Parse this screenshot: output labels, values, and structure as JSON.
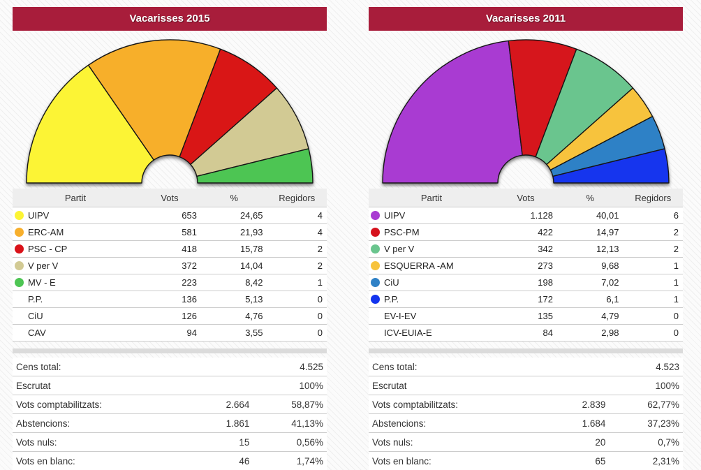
{
  "theme": {
    "accent_bar": "#A81D3B",
    "table_header_bg": "#EEEEEE",
    "row_border": "#CCCCCC",
    "separator_bar": "#DBDBDB"
  },
  "panels": [
    {
      "title": "Vacarisses 2015",
      "table": {
        "headers": [
          "Partit",
          "Vots",
          "%",
          "Regidors"
        ],
        "rows": [
          {
            "party": "UIPV",
            "color": "#FCF434",
            "votes": "653",
            "pct": "24,65",
            "seats": "4"
          },
          {
            "party": "ERC-AM",
            "color": "#F7AF2C",
            "votes": "581",
            "pct": "21,93",
            "seats": "4"
          },
          {
            "party": "PSC - CP",
            "color": "#D91219",
            "votes": "418",
            "pct": "15,78",
            "seats": "2"
          },
          {
            "party": "V per V",
            "color": "#D2CA94",
            "votes": "372",
            "pct": "14,04",
            "seats": "2"
          },
          {
            "party": "MV - E",
            "color": "#4DC553",
            "votes": "223",
            "pct": "8,42",
            "seats": "1"
          },
          {
            "party": "P.P.",
            "color": null,
            "votes": "136",
            "pct": "5,13",
            "seats": "0"
          },
          {
            "party": "CiU",
            "color": null,
            "votes": "126",
            "pct": "4,76",
            "seats": "0"
          },
          {
            "party": "CAV",
            "color": null,
            "votes": "94",
            "pct": "3,55",
            "seats": "0"
          }
        ]
      },
      "summary": {
        "rows": [
          {
            "label": "Cens total:",
            "value": "",
            "pct": "4.525"
          },
          {
            "label": "Escrutat",
            "value": "",
            "pct": "100%"
          },
          {
            "label": "Vots comptabilitzats:",
            "value": "2.664",
            "pct": "58,87%"
          },
          {
            "label": "Abstencions:",
            "value": "1.861",
            "pct": "41,13%"
          },
          {
            "label": "Vots nuls:",
            "value": "15",
            "pct": "0,56%"
          },
          {
            "label": "Vots en blanc:",
            "value": "46",
            "pct": "1,74%"
          }
        ]
      }
    },
    {
      "title": "Vacarisses 2011",
      "table": {
        "headers": [
          "Partit",
          "Vots",
          "%",
          "Regidors"
        ],
        "rows": [
          {
            "party": "UIPV",
            "color": "#A93BD2",
            "votes": "1.128",
            "pct": "40,01",
            "seats": "6"
          },
          {
            "party": "PSC-PM",
            "color": "#D6121D",
            "votes": "422",
            "pct": "14,97",
            "seats": "2"
          },
          {
            "party": "V per V",
            "color": "#6AC58E",
            "votes": "342",
            "pct": "12,13",
            "seats": "2"
          },
          {
            "party": "ESQUERRA -AM",
            "color": "#F7C33C",
            "votes": "273",
            "pct": "9,68",
            "seats": "1"
          },
          {
            "party": "CiU",
            "color": "#2F81C6",
            "votes": "198",
            "pct": "7,02",
            "seats": "1"
          },
          {
            "party": "P.P.",
            "color": "#1334EE",
            "votes": "172",
            "pct": "6,1",
            "seats": "1"
          },
          {
            "party": "EV-I-EV",
            "color": null,
            "votes": "135",
            "pct": "4,79",
            "seats": "0"
          },
          {
            "party": "ICV-EUIA-E",
            "color": null,
            "votes": "84",
            "pct": "2,98",
            "seats": "0"
          }
        ]
      },
      "summary": {
        "rows": [
          {
            "label": "Cens total:",
            "value": "",
            "pct": "4.523"
          },
          {
            "label": "Escrutat",
            "value": "",
            "pct": "100%"
          },
          {
            "label": "Vots comptabilitzats:",
            "value": "2.839",
            "pct": "62,77%"
          },
          {
            "label": "Abstencions:",
            "value": "1.684",
            "pct": "37,23%"
          },
          {
            "label": "Vots nuls:",
            "value": "20",
            "pct": "0,7%"
          },
          {
            "label": "Vots en blanc:",
            "value": "65",
            "pct": "2,31%"
          }
        ]
      }
    }
  ],
  "chart_data": [
    {
      "type": "pie",
      "variant": "half-donut",
      "title": "Vacarisses 2015",
      "value_meaning": "regidors (council seats)",
      "labels": [
        "UIPV",
        "ERC-AM",
        "PSC - CP",
        "V per V",
        "MV - E"
      ],
      "values": [
        4,
        4,
        2,
        2,
        1
      ],
      "colors": [
        "#FCF434",
        "#F7AF2C",
        "#D91219",
        "#D2CA94",
        "#4DC553"
      ],
      "start_angle_deg": 180,
      "end_angle_deg": 0,
      "inner_radius_ratio": 0.195,
      "legend_position": "table-below"
    },
    {
      "type": "pie",
      "variant": "half-donut",
      "title": "Vacarisses 2011",
      "value_meaning": "regidors (council seats)",
      "labels": [
        "UIPV",
        "PSC-PM",
        "V per V",
        "ESQUERRA -AM",
        "CiU",
        "P.P."
      ],
      "values": [
        6,
        2,
        2,
        1,
        1,
        1
      ],
      "colors": [
        "#A93BD2",
        "#D6121D",
        "#6AC58E",
        "#F7C33C",
        "#2F81C6",
        "#1334EE"
      ],
      "start_angle_deg": 180,
      "end_angle_deg": 0,
      "inner_radius_ratio": 0.195,
      "legend_position": "table-below"
    }
  ]
}
